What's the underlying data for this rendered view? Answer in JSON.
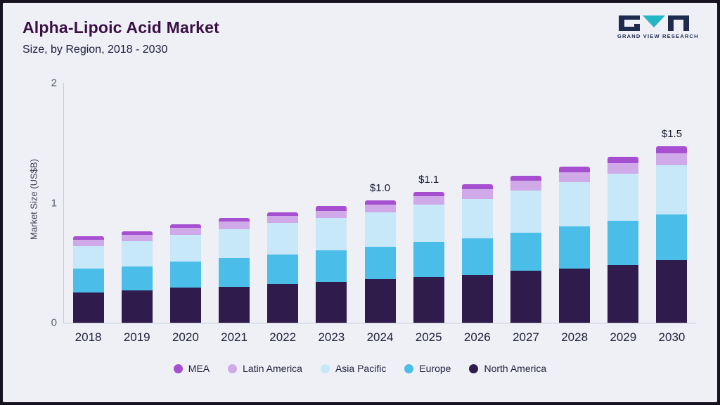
{
  "header": {
    "title": "Alpha-Lipoic Acid Market",
    "subtitle": "Size, by Region, 2018 - 2030"
  },
  "logo": {
    "text": "GRAND VIEW RESEARCH",
    "accent_color": "#25b6c3",
    "dark_color": "#1d2b4f"
  },
  "chart_data": {
    "type": "bar",
    "variant": "stacked-column",
    "title": "Alpha-Lipoic Acid Market Size, by Region, 2018 - 2030",
    "xlabel": "",
    "ylabel": "Market Size (US$B)",
    "ylim": [
      0,
      2
    ],
    "yticks": [
      "0",
      "1",
      "2"
    ],
    "grid": "off",
    "legend_position": "bottom",
    "categories": [
      "2018",
      "2019",
      "2020",
      "2021",
      "2022",
      "2023",
      "2024",
      "2025",
      "2026",
      "2027",
      "2028",
      "2029",
      "2030"
    ],
    "series": [
      {
        "name": "North America",
        "color": "#2f1b4c",
        "values": [
          0.25,
          0.27,
          0.29,
          0.3,
          0.32,
          0.34,
          0.36,
          0.38,
          0.4,
          0.43,
          0.45,
          0.48,
          0.52
        ]
      },
      {
        "name": "Europe",
        "color": "#4bbde9",
        "values": [
          0.2,
          0.2,
          0.22,
          0.24,
          0.25,
          0.26,
          0.27,
          0.29,
          0.3,
          0.32,
          0.35,
          0.37,
          0.38
        ]
      },
      {
        "name": "Asia Pacific",
        "color": "#c7e8f8",
        "values": [
          0.19,
          0.21,
          0.22,
          0.24,
          0.26,
          0.27,
          0.29,
          0.31,
          0.33,
          0.35,
          0.37,
          0.39,
          0.41
        ]
      },
      {
        "name": "Latin America",
        "color": "#d0a9e8",
        "values": [
          0.05,
          0.05,
          0.06,
          0.06,
          0.06,
          0.06,
          0.06,
          0.07,
          0.08,
          0.08,
          0.08,
          0.09,
          0.1
        ]
      },
      {
        "name": "MEA",
        "color": "#a74fd1",
        "values": [
          0.03,
          0.03,
          0.03,
          0.03,
          0.03,
          0.04,
          0.04,
          0.04,
          0.04,
          0.04,
          0.05,
          0.05,
          0.06
        ]
      }
    ],
    "totals": [
      0.72,
      0.76,
      0.82,
      0.87,
      0.92,
      0.97,
      1.02,
      1.09,
      1.15,
      1.22,
      1.3,
      1.38,
      1.47
    ],
    "annotations": [
      {
        "category": "2024",
        "label": "$1.0"
      },
      {
        "category": "2025",
        "label": "$1.1"
      },
      {
        "category": "2030",
        "label": "$1.5"
      }
    ],
    "legend_order": [
      "MEA",
      "Latin America",
      "Asia Pacific",
      "Europe",
      "North America"
    ]
  }
}
